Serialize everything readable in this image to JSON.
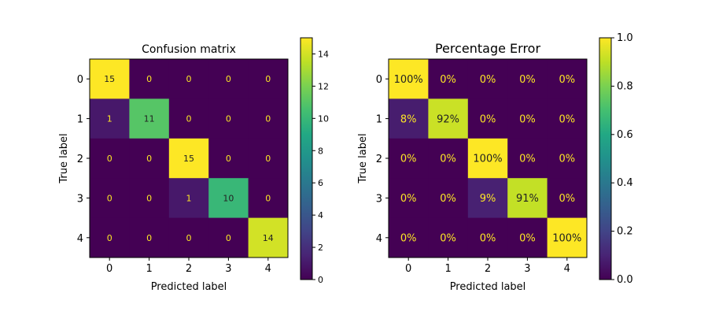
{
  "chart_data": [
    {
      "type": "heatmap",
      "title": "Confusion matrix",
      "xlabel": "Predicted label",
      "ylabel": "True label",
      "x_categories": [
        "0",
        "1",
        "2",
        "3",
        "4"
      ],
      "y_categories": [
        "0",
        "1",
        "2",
        "3",
        "4"
      ],
      "values": [
        [
          15,
          0,
          0,
          0,
          0
        ],
        [
          1,
          11,
          0,
          0,
          0
        ],
        [
          0,
          0,
          15,
          0,
          0
        ],
        [
          0,
          0,
          1,
          10,
          0
        ],
        [
          0,
          0,
          0,
          0,
          14
        ]
      ],
      "labels": [
        [
          "15",
          "0",
          "0",
          "0",
          "0"
        ],
        [
          "1",
          "11",
          "0",
          "0",
          "0"
        ],
        [
          "0",
          "0",
          "15",
          "0",
          "0"
        ],
        [
          "0",
          "0",
          "1",
          "10",
          "0"
        ],
        [
          "0",
          "0",
          "0",
          "0",
          "14"
        ]
      ],
      "colormap": "viridis",
      "vmin": 0,
      "vmax": 15,
      "colorbar_ticks": [
        "0",
        "2",
        "4",
        "6",
        "8",
        "10",
        "12",
        "14"
      ],
      "colorbar_tick_values": [
        0,
        2,
        4,
        6,
        8,
        10,
        12,
        14
      ]
    },
    {
      "type": "heatmap",
      "title": "Percentage Error",
      "xlabel": "Predicted label",
      "ylabel": "True label",
      "x_categories": [
        "0",
        "1",
        "2",
        "3",
        "4"
      ],
      "y_categories": [
        "0",
        "1",
        "2",
        "3",
        "4"
      ],
      "values": [
        [
          1.0,
          0.0,
          0.0,
          0.0,
          0.0
        ],
        [
          0.08,
          0.92,
          0.0,
          0.0,
          0.0
        ],
        [
          0.0,
          0.0,
          1.0,
          0.0,
          0.0
        ],
        [
          0.0,
          0.0,
          0.09,
          0.91,
          0.0
        ],
        [
          0.0,
          0.0,
          0.0,
          0.0,
          1.0
        ]
      ],
      "labels": [
        [
          "100%",
          "0%",
          "0%",
          "0%",
          "0%"
        ],
        [
          "8%",
          "92%",
          "0%",
          "0%",
          "0%"
        ],
        [
          "0%",
          "0%",
          "100%",
          "0%",
          "0%"
        ],
        [
          "0%",
          "0%",
          "9%",
          "91%",
          "0%"
        ],
        [
          "0%",
          "0%",
          "0%",
          "0%",
          "100%"
        ]
      ],
      "colormap": "viridis",
      "vmin": 0.0,
      "vmax": 1.0,
      "colorbar_ticks": [
        "0.0",
        "0.2",
        "0.4",
        "0.6",
        "0.8",
        "1.0"
      ],
      "colorbar_tick_values": [
        0.0,
        0.2,
        0.4,
        0.6,
        0.8,
        1.0
      ]
    }
  ]
}
